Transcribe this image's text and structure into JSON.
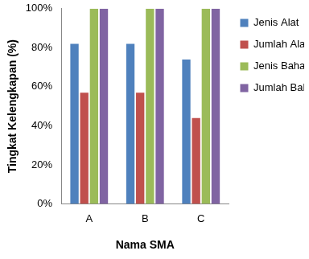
{
  "chart_data": {
    "type": "bar",
    "categories": [
      "A",
      "B",
      "C"
    ],
    "series": [
      {
        "name": "Jenis Alat",
        "color": "#4f81bd",
        "values": [
          82,
          82,
          74
        ]
      },
      {
        "name": "Jumlah Alat",
        "color": "#c0504d",
        "values": [
          57,
          57,
          44
        ]
      },
      {
        "name": "Jenis Bahan",
        "color": "#9bbb59",
        "values": [
          100,
          100,
          100
        ]
      },
      {
        "name": "Jumlah Bahan",
        "color": "#8064a2",
        "values": [
          100,
          100,
          100
        ]
      }
    ],
    "x_label": "Nama SMA",
    "y_label": "Tingkat Kelengkapan (%)",
    "ylim": [
      0,
      100
    ],
    "yticks": [
      {
        "value": 0,
        "label": "0%"
      },
      {
        "value": 20,
        "label": "20%"
      },
      {
        "value": 40,
        "label": "40%"
      },
      {
        "value": 60,
        "label": "60%"
      },
      {
        "value": 80,
        "label": "80%"
      },
      {
        "value": 100,
        "label": "100%"
      }
    ],
    "grid": false,
    "legend": "right"
  }
}
